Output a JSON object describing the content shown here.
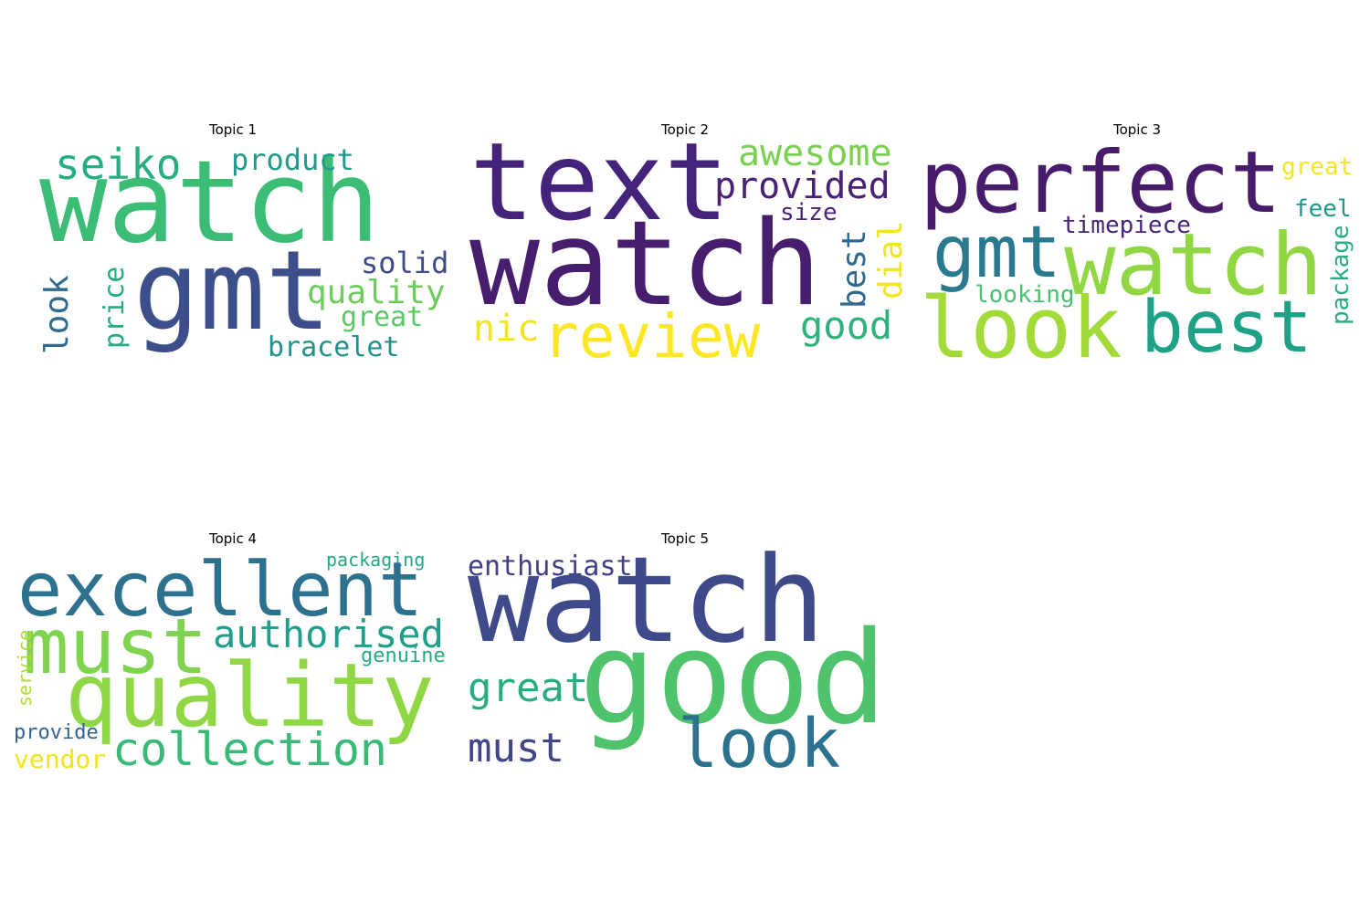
{
  "topics": [
    {
      "title": "Topic 1",
      "words": [
        {
          "text": "watch",
          "color": "#3bbd76"
        },
        {
          "text": "gmt",
          "color": "#3c4f8a"
        },
        {
          "text": "seiko",
          "color": "#26ad81"
        },
        {
          "text": "product",
          "color": "#21998b"
        },
        {
          "text": "solid",
          "color": "#3f4a89"
        },
        {
          "text": "quality",
          "color": "#6ccd5a"
        },
        {
          "text": "great",
          "color": "#5ac864"
        },
        {
          "text": "bracelet",
          "color": "#21918c"
        },
        {
          "text": "look",
          "color": "#30698e"
        },
        {
          "text": "price",
          "color": "#26aa81"
        }
      ]
    },
    {
      "title": "Topic 2",
      "words": [
        {
          "text": "text",
          "color": "#46237a"
        },
        {
          "text": "watch",
          "color": "#471d6e"
        },
        {
          "text": "awesome",
          "color": "#7ad151"
        },
        {
          "text": "provided",
          "color": "#482173"
        },
        {
          "text": "size",
          "color": "#482475"
        },
        {
          "text": "best",
          "color": "#31688e"
        },
        {
          "text": "dial",
          "color": "#f1e51d"
        },
        {
          "text": "nic",
          "color": "#f0e51f"
        },
        {
          "text": "review",
          "color": "#fde725"
        },
        {
          "text": "good",
          "color": "#2db27d"
        }
      ]
    },
    {
      "title": "Topic 3",
      "words": [
        {
          "text": "perfect",
          "color": "#471c6b"
        },
        {
          "text": "great",
          "color": "#f6e620"
        },
        {
          "text": "feel",
          "color": "#22958b"
        },
        {
          "text": "timepiece",
          "color": "#482576"
        },
        {
          "text": "gmt",
          "color": "#2a798e"
        },
        {
          "text": "watch",
          "color": "#90d743"
        },
        {
          "text": "package",
          "color": "#27ad81"
        },
        {
          "text": "looking",
          "color": "#4ac16d"
        },
        {
          "text": "look",
          "color": "#a2da37"
        },
        {
          "text": "best",
          "color": "#1fa187"
        }
      ]
    },
    {
      "title": "Topic 4",
      "words": [
        {
          "text": "packaging",
          "color": "#23a983"
        },
        {
          "text": "excellent",
          "color": "#2d718e"
        },
        {
          "text": "must",
          "color": "#7fd34e"
        },
        {
          "text": "authorised",
          "color": "#1f9e89"
        },
        {
          "text": "genuine",
          "color": "#25ac82"
        },
        {
          "text": "service",
          "color": "#b0dd2f"
        },
        {
          "text": "quality",
          "color": "#8fd744"
        },
        {
          "text": "provide",
          "color": "#33638d"
        },
        {
          "text": "vendor",
          "color": "#f1e51d"
        },
        {
          "text": "collection",
          "color": "#38b977"
        }
      ]
    },
    {
      "title": "Topic 5",
      "words": [
        {
          "text": "enthusiast",
          "color": "#424086"
        },
        {
          "text": "watch",
          "color": "#3e4a89"
        },
        {
          "text": "good",
          "color": "#4ec36b"
        },
        {
          "text": "great",
          "color": "#27ad81"
        },
        {
          "text": "must",
          "color": "#414487"
        },
        {
          "text": "look",
          "color": "#2c728e"
        }
      ]
    }
  ]
}
